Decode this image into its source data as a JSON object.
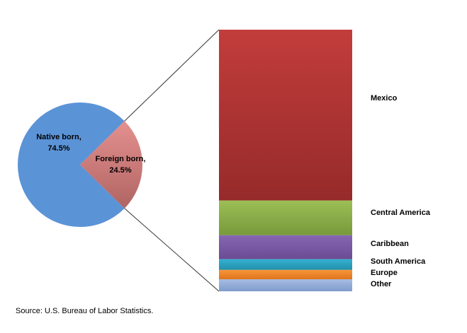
{
  "chart_data": {
    "type": "pie",
    "source_note": "Source: U.S. Bureau of Labor Statistics.",
    "pie": {
      "slices": [
        {
          "name": "Native born,",
          "value_label": "74.5%",
          "value": 74.5,
          "color": "#5b93d7"
        },
        {
          "name": "Foreign born,",
          "value_label": "24.5%",
          "value": 24.5,
          "color": "#c96a69"
        }
      ]
    },
    "breakdown": {
      "type": "bar",
      "stacked": true,
      "segments": [
        {
          "name": "Mexico",
          "value": 64.0,
          "color": "#b33434"
        },
        {
          "name": "Central America",
          "value": 13.0,
          "color": "#8aad46"
        },
        {
          "name": "Caribbean",
          "value": 9.0,
          "color": "#7a5aa3"
        },
        {
          "name": "South America",
          "value": 4.0,
          "color": "#2a9fbd"
        },
        {
          "name": "Europe",
          "value": 3.5,
          "color": "#f0862a"
        },
        {
          "name": "Other",
          "value": 4.5,
          "color": "#8ea9d6"
        }
      ]
    }
  }
}
